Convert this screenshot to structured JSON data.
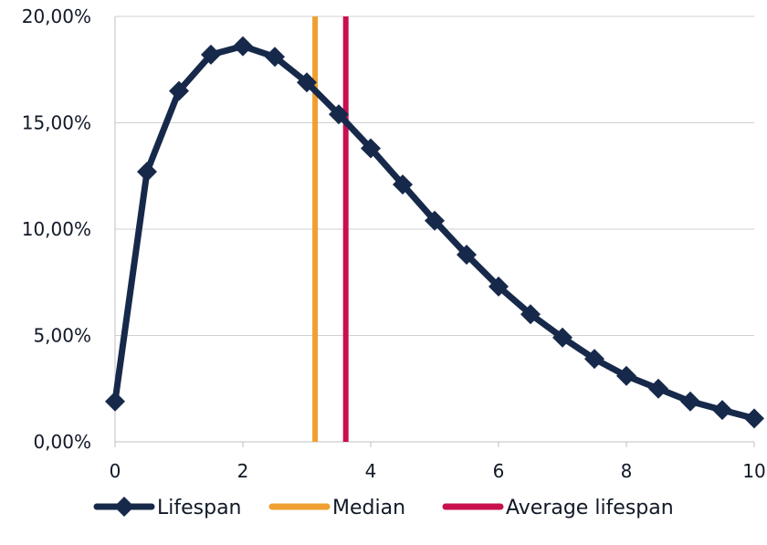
{
  "chart_data": {
    "type": "line",
    "title": "",
    "xlabel": "",
    "ylabel": "",
    "xlim": [
      0,
      10
    ],
    "ylim": [
      0,
      20
    ],
    "x_ticks": [
      0,
      2,
      4,
      6,
      8,
      10
    ],
    "x_tick_labels": [
      "0",
      "2",
      "4",
      "6",
      "8",
      "10"
    ],
    "y_ticks": [
      0,
      5,
      10,
      15,
      20
    ],
    "y_tick_labels": [
      "0,00%",
      "5,00%",
      "10,00%",
      "15,00%",
      "20,00%"
    ],
    "grid": "horizontal",
    "legend_position": "bottom",
    "series": [
      {
        "name": "Lifespan",
        "color": "#16294a",
        "marker": "diamond",
        "x": [
          0,
          0.5,
          1,
          1.5,
          2,
          2.5,
          3,
          3.5,
          4,
          4.5,
          5,
          5.5,
          6,
          6.5,
          7,
          7.5,
          8,
          8.5,
          9,
          9.5,
          10
        ],
        "y": [
          1.9,
          12.7,
          16.5,
          18.2,
          18.6,
          18.1,
          16.9,
          15.4,
          13.8,
          12.1,
          10.4,
          8.8,
          7.3,
          6.0,
          4.9,
          3.9,
          3.1,
          2.5,
          1.9,
          1.5,
          1.1
        ]
      },
      {
        "name": "Median",
        "color": "#f0a030",
        "type": "vertical-line",
        "x": 3.13
      },
      {
        "name": "Average lifespan",
        "color": "#c8104e",
        "type": "vertical-line",
        "x": 3.61
      }
    ]
  }
}
